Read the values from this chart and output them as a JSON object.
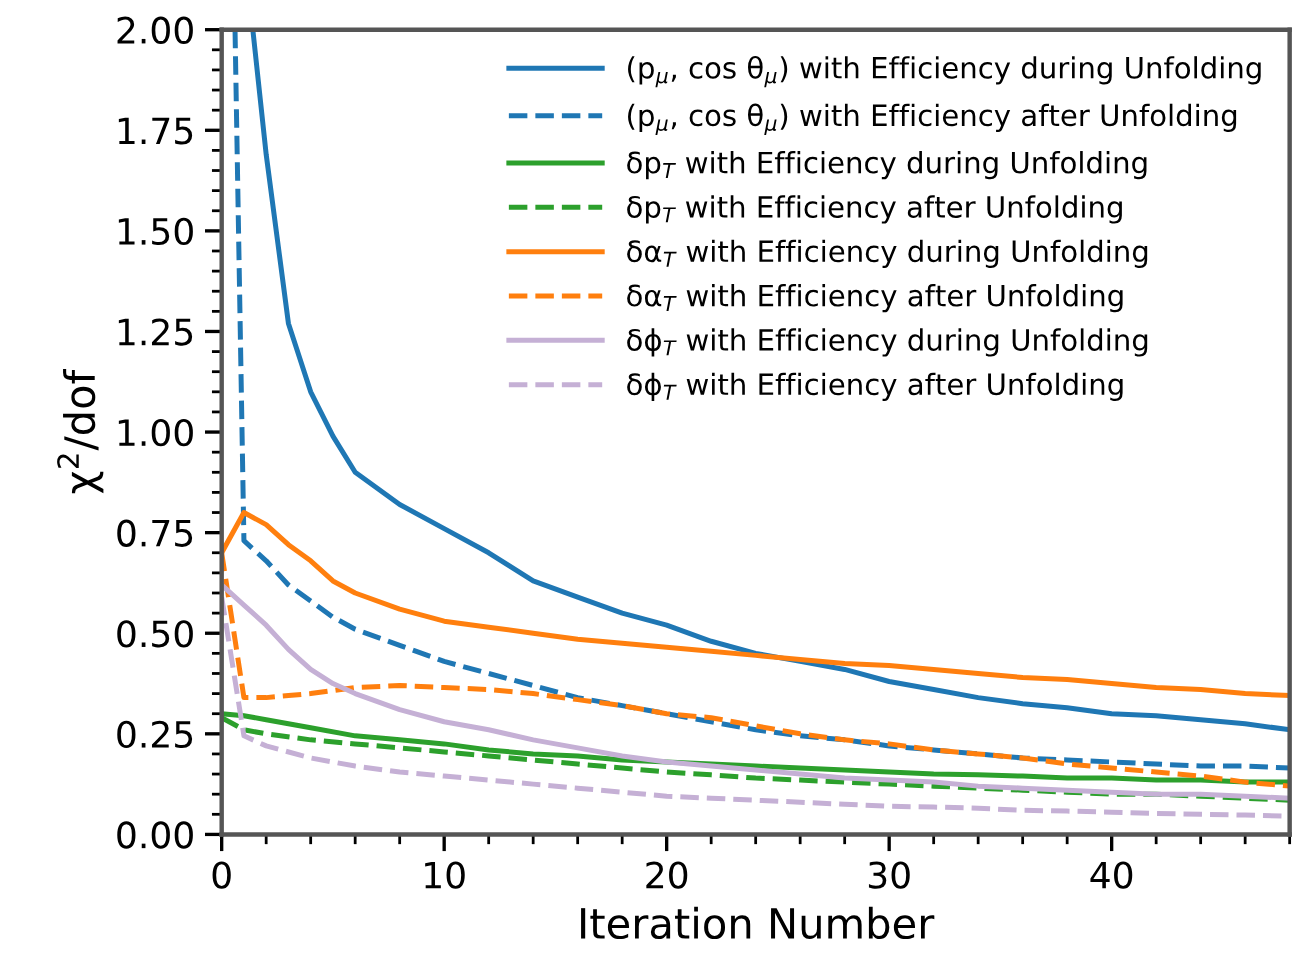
{
  "chart_data": {
    "type": "line",
    "xlabel": "Iteration Number",
    "ylabel": "χ$^{2}$/dof",
    "xlim": [
      0,
      48
    ],
    "ylim": [
      0,
      2.0
    ],
    "xticks": [
      0,
      10,
      20,
      30,
      40
    ],
    "yticks": [
      {
        "value": 0,
        "label": "0.00"
      },
      {
        "value": 0.25,
        "label": "0.25"
      },
      {
        "value": 0.5,
        "label": "0.50"
      },
      {
        "value": 0.75,
        "label": "0.75"
      },
      {
        "value": 1.0,
        "label": "1.00"
      },
      {
        "value": 1.25,
        "label": "1.25"
      },
      {
        "value": 1.5,
        "label": "1.50"
      },
      {
        "value": 1.75,
        "label": "1.75"
      },
      {
        "value": 2.0,
        "label": "2.00"
      }
    ],
    "grid": false,
    "legend": "top right",
    "marker": "none",
    "series": [
      {
        "name": "(p$_{μ}$, cos θ$_{μ}$) with Efficiency during Unfolding",
        "color": "#1f77b4",
        "line_style": "solid",
        "x": [
          1.4,
          2,
          3,
          4,
          5,
          6,
          8,
          10,
          12,
          14,
          16,
          18,
          20,
          22,
          24,
          26,
          28,
          30,
          32,
          34,
          36,
          38,
          40,
          42,
          44,
          46,
          48
        ],
        "values": [
          2.0,
          1.69,
          1.27,
          1.1,
          0.99,
          0.9,
          0.82,
          0.76,
          0.7,
          0.63,
          0.59,
          0.55,
          0.52,
          0.48,
          0.45,
          0.43,
          0.41,
          0.38,
          0.36,
          0.34,
          0.325,
          0.315,
          0.3,
          0.295,
          0.285,
          0.275,
          0.26
        ]
      },
      {
        "name": "(p$_{μ}$, cos θ$_{μ}$) with Efficiency after Unfolding",
        "color": "#1f77b4",
        "line_style": "dashed",
        "x": [
          0.6,
          1,
          2,
          3,
          4,
          5,
          6,
          8,
          10,
          12,
          14,
          16,
          18,
          20,
          22,
          24,
          26,
          28,
          30,
          32,
          34,
          36,
          38,
          40,
          42,
          44,
          46,
          48
        ],
        "values": [
          2.0,
          0.73,
          0.68,
          0.62,
          0.58,
          0.54,
          0.51,
          0.47,
          0.43,
          0.4,
          0.37,
          0.34,
          0.32,
          0.3,
          0.28,
          0.26,
          0.245,
          0.235,
          0.22,
          0.21,
          0.2,
          0.19,
          0.185,
          0.18,
          0.175,
          0.17,
          0.17,
          0.165
        ]
      },
      {
        "name": "δp$_{T}$ with Efficiency during Unfolding",
        "color": "#2ca02c",
        "line_style": "solid",
        "x": [
          0,
          1,
          2,
          4,
          6,
          8,
          10,
          12,
          14,
          16,
          18,
          20,
          22,
          24,
          26,
          28,
          30,
          32,
          34,
          36,
          38,
          40,
          42,
          44,
          46,
          48
        ],
        "values": [
          0.3,
          0.295,
          0.285,
          0.265,
          0.245,
          0.235,
          0.225,
          0.21,
          0.2,
          0.195,
          0.185,
          0.18,
          0.175,
          0.17,
          0.165,
          0.16,
          0.155,
          0.15,
          0.148,
          0.145,
          0.14,
          0.14,
          0.135,
          0.135,
          0.13,
          0.13
        ]
      },
      {
        "name": "δp$_{T}$ with Efficiency after Unfolding",
        "color": "#2ca02c",
        "line_style": "dashed",
        "x": [
          0,
          1,
          2,
          4,
          6,
          8,
          10,
          12,
          14,
          16,
          18,
          20,
          22,
          24,
          26,
          28,
          30,
          32,
          34,
          36,
          38,
          40,
          42,
          44,
          46,
          48
        ],
        "values": [
          0.29,
          0.26,
          0.25,
          0.235,
          0.225,
          0.215,
          0.205,
          0.195,
          0.185,
          0.175,
          0.165,
          0.155,
          0.148,
          0.14,
          0.135,
          0.13,
          0.125,
          0.12,
          0.115,
          0.11,
          0.105,
          0.1,
          0.1,
          0.095,
          0.09,
          0.085
        ]
      },
      {
        "name": "δα$_{T}$ with Efficiency during Unfolding",
        "color": "#ff7f0e",
        "line_style": "solid",
        "x": [
          0,
          1,
          2,
          3,
          4,
          5,
          6,
          8,
          10,
          12,
          14,
          16,
          18,
          20,
          22,
          24,
          26,
          28,
          30,
          32,
          34,
          36,
          38,
          40,
          42,
          44,
          46,
          48
        ],
        "values": [
          0.7,
          0.8,
          0.77,
          0.72,
          0.68,
          0.63,
          0.6,
          0.56,
          0.53,
          0.515,
          0.5,
          0.485,
          0.475,
          0.465,
          0.455,
          0.445,
          0.435,
          0.425,
          0.42,
          0.41,
          0.4,
          0.39,
          0.385,
          0.375,
          0.365,
          0.36,
          0.35,
          0.345
        ]
      },
      {
        "name": "δα$_{T}$ with Efficiency after Unfolding",
        "color": "#ff7f0e",
        "line_style": "dashed",
        "x": [
          0,
          1,
          2,
          3,
          4,
          6,
          8,
          10,
          12,
          14,
          16,
          18,
          20,
          22,
          24,
          26,
          28,
          30,
          32,
          34,
          36,
          38,
          40,
          42,
          44,
          46,
          48
        ],
        "values": [
          0.7,
          0.34,
          0.34,
          0.345,
          0.35,
          0.365,
          0.37,
          0.365,
          0.36,
          0.35,
          0.335,
          0.32,
          0.3,
          0.29,
          0.27,
          0.25,
          0.235,
          0.225,
          0.21,
          0.2,
          0.19,
          0.175,
          0.165,
          0.155,
          0.145,
          0.13,
          0.12
        ]
      },
      {
        "name": "δϕ$_{T}$ with Efficiency during Unfolding",
        "color": "#c5b0d5",
        "line_style": "solid",
        "x": [
          0,
          1,
          2,
          3,
          4,
          5,
          6,
          8,
          10,
          12,
          14,
          16,
          18,
          20,
          22,
          24,
          26,
          28,
          30,
          32,
          34,
          36,
          38,
          40,
          42,
          44,
          46,
          48
        ],
        "values": [
          0.62,
          0.57,
          0.52,
          0.46,
          0.41,
          0.375,
          0.35,
          0.31,
          0.28,
          0.26,
          0.235,
          0.215,
          0.195,
          0.18,
          0.17,
          0.16,
          0.15,
          0.14,
          0.135,
          0.13,
          0.12,
          0.115,
          0.11,
          0.105,
          0.1,
          0.1,
          0.095,
          0.09
        ]
      },
      {
        "name": "δϕ$_{T}$ with Efficiency after Unfolding",
        "color": "#c5b0d5",
        "line_style": "dashed",
        "x": [
          0,
          1,
          2,
          4,
          6,
          8,
          10,
          12,
          14,
          16,
          18,
          20,
          22,
          24,
          26,
          28,
          30,
          32,
          34,
          36,
          38,
          40,
          42,
          44,
          46,
          48
        ],
        "values": [
          0.59,
          0.245,
          0.22,
          0.19,
          0.17,
          0.155,
          0.145,
          0.135,
          0.125,
          0.115,
          0.105,
          0.095,
          0.09,
          0.085,
          0.08,
          0.075,
          0.07,
          0.068,
          0.065,
          0.06,
          0.058,
          0.055,
          0.052,
          0.05,
          0.048,
          0.045
        ]
      }
    ]
  }
}
